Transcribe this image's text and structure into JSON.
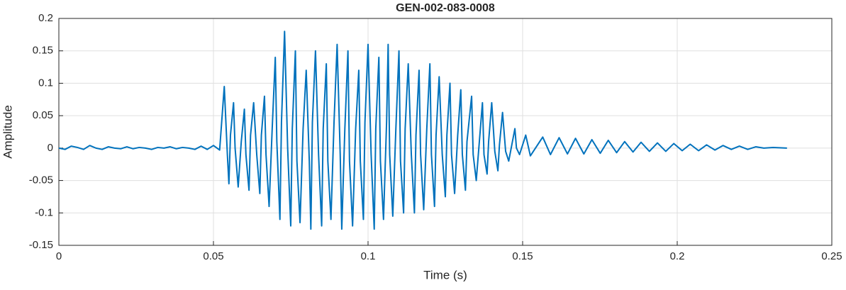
{
  "chart_data": {
    "type": "line",
    "title": "GEN-002-083-0008",
    "xlabel": "Time (s)",
    "ylabel": "Amplitude",
    "xlim": [
      0,
      0.25
    ],
    "xticks": [
      0,
      0.05,
      0.1,
      0.15,
      0.2,
      0.25
    ],
    "ylim": [
      -0.15,
      0.2
    ],
    "yticks": [
      -0.15,
      -0.1,
      -0.05,
      0,
      0.05,
      0.1,
      0.15,
      0.2
    ],
    "grid": true,
    "x": [
      0,
      0.002,
      0.004,
      0.006,
      0.008,
      0.01,
      0.012,
      0.014,
      0.016,
      0.018,
      0.02,
      0.022,
      0.024,
      0.026,
      0.028,
      0.03,
      0.032,
      0.034,
      0.036,
      0.038,
      0.04,
      0.042,
      0.044,
      0.046,
      0.048,
      0.05,
      0.052,
      0.0535,
      0.0545,
      0.055,
      0.0555,
      0.0565,
      0.057,
      0.058,
      0.059,
      0.06,
      0.0605,
      0.0615,
      0.062,
      0.063,
      0.064,
      0.065,
      0.0655,
      0.0665,
      0.067,
      0.068,
      0.069,
      0.07,
      0.0705,
      0.0715,
      0.072,
      0.073,
      0.074,
      0.075,
      0.0755,
      0.0765,
      0.077,
      0.078,
      0.079,
      0.08,
      0.081,
      0.0815,
      0.082,
      0.083,
      0.084,
      0.085,
      0.0855,
      0.0865,
      0.087,
      0.088,
      0.089,
      0.09,
      0.091,
      0.0915,
      0.0925,
      0.0935,
      0.094,
      0.095,
      0.096,
      0.097,
      0.0975,
      0.0985,
      0.099,
      0.1,
      0.101,
      0.102,
      0.1025,
      0.1035,
      0.104,
      0.105,
      0.106,
      0.1065,
      0.107,
      0.108,
      0.109,
      0.11,
      0.1105,
      0.1115,
      0.112,
      0.113,
      0.114,
      0.115,
      0.1155,
      0.1165,
      0.117,
      0.118,
      0.119,
      0.12,
      0.1205,
      0.1215,
      0.122,
      0.123,
      0.124,
      0.125,
      0.1255,
      0.1265,
      0.127,
      0.128,
      0.129,
      0.13,
      0.1305,
      0.1315,
      0.132,
      0.1335,
      0.134,
      0.135,
      0.136,
      0.137,
      0.1375,
      0.1385,
      0.139,
      0.14,
      0.141,
      0.142,
      0.1425,
      0.1435,
      0.1445,
      0.1455,
      0.1465,
      0.1475,
      0.148,
      0.149,
      0.15,
      0.151,
      0.1525,
      0.1565,
      0.159,
      0.1618,
      0.1645,
      0.1671,
      0.1698,
      0.1724,
      0.1751,
      0.1777,
      0.1804,
      0.183,
      0.1857,
      0.1883,
      0.191,
      0.1936,
      0.1963,
      0.1989,
      0.2016,
      0.2042,
      0.2069,
      0.2095,
      0.2122,
      0.2148,
      0.2175,
      0.2201,
      0.2228,
      0.2254,
      0.228,
      0.231,
      0.2355
    ],
    "series": [
      {
        "color": "#0072bd",
        "values": [
          0,
          -0.002,
          0.003,
          0.001,
          -0.002,
          0.004,
          0,
          -0.002,
          0.002,
          0,
          -0.001,
          0.002,
          -0.001,
          0.001,
          0,
          -0.002,
          0.001,
          0,
          0.002,
          -0.001,
          0.001,
          0,
          -0.002,
          0.003,
          -0.002,
          0.004,
          -0.003,
          0.095,
          -0.01,
          -0.055,
          0.02,
          0.07,
          0,
          -0.06,
          0.01,
          0.06,
          -0.01,
          -0.065,
          0.02,
          0.07,
          -0.01,
          -0.07,
          0.02,
          0.08,
          -0.01,
          -0.09,
          0.03,
          0.14,
          0.01,
          -0.11,
          0.04,
          0.18,
          0,
          -0.12,
          0.03,
          0.15,
          -0.02,
          -0.115,
          0.03,
          0.12,
          -0.02,
          -0.125,
          0.04,
          0.15,
          -0.01,
          -0.12,
          0.03,
          0.13,
          -0.02,
          -0.11,
          0.04,
          0.16,
          -0.01,
          -0.125,
          0.03,
          0.15,
          -0.02,
          -0.12,
          0.03,
          0.12,
          -0.02,
          -0.11,
          0.04,
          0.16,
          -0.01,
          -0.125,
          0.03,
          0.14,
          -0.02,
          -0.11,
          0.04,
          0.16,
          -0.01,
          -0.105,
          0.03,
          0.15,
          -0.02,
          -0.1,
          0.03,
          0.13,
          -0.01,
          -0.1,
          0.02,
          0.12,
          -0.01,
          -0.095,
          0.03,
          0.13,
          -0.01,
          -0.09,
          0.02,
          0.11,
          -0.01,
          -0.075,
          0.02,
          0.1,
          -0.01,
          -0.07,
          0.02,
          0.09,
          -0.01,
          -0.065,
          0.01,
          0.08,
          -0.01,
          -0.05,
          0.01,
          0.07,
          -0.01,
          -0.04,
          0.01,
          0.07,
          -0.005,
          -0.035,
          0.005,
          0.055,
          -0.005,
          -0.02,
          0.005,
          0.03,
          0,
          -0.01,
          0.005,
          0.02,
          -0.012,
          0.017,
          -0.01,
          0.016,
          -0.009,
          0.015,
          -0.009,
          0.013,
          -0.008,
          0.012,
          -0.007,
          0.01,
          -0.006,
          0.009,
          -0.005,
          0.008,
          -0.005,
          0.007,
          -0.004,
          0.006,
          -0.004,
          0.005,
          -0.003,
          0.004,
          -0.002,
          0.003,
          -0.002,
          0.002,
          0,
          0.001,
          0
        ]
      }
    ]
  }
}
